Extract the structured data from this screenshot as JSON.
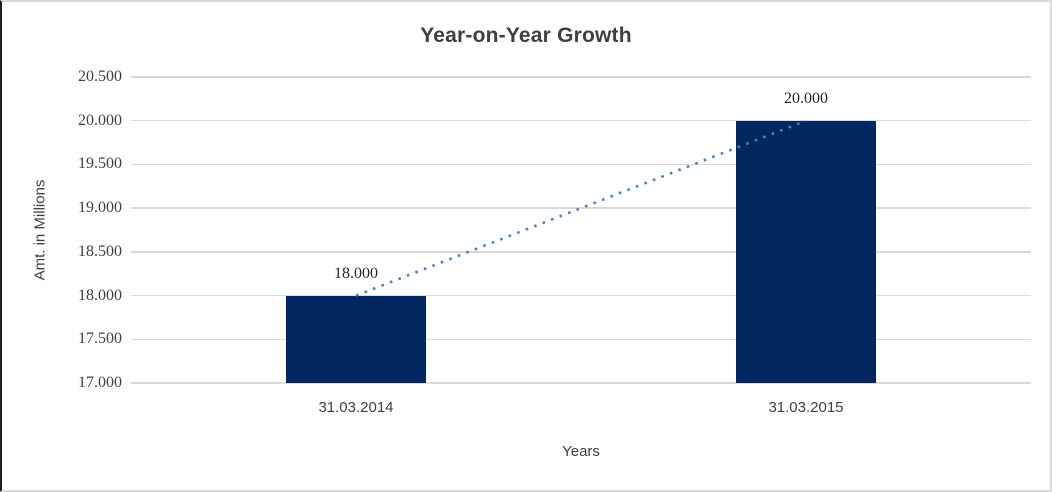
{
  "chart_data": {
    "type": "bar",
    "title": "Year-on-Year Growth",
    "categories": [
      "31.03.2014",
      "31.03.2015"
    ],
    "values": [
      18.0,
      20.0
    ],
    "value_labels": [
      "18.000",
      "20.000"
    ],
    "xlabel": "Years",
    "ylabel": "Amt. in Millions",
    "ylim": [
      17.0,
      20.5
    ],
    "ytick_step": 0.5,
    "ytick_labels": [
      "17.000",
      "17.500",
      "18.000",
      "18.500",
      "19.000",
      "19.500",
      "20.000",
      "20.500"
    ],
    "grid": true,
    "legend_position": "none",
    "trendline": {
      "style": "dotted",
      "connects": "bar tops 18.000 to 20.000"
    },
    "colors": {
      "bar": "#02265f",
      "gridline": "#d9d9d9",
      "trendline": "#4a7ec0",
      "text": "#404040",
      "frame_border": "#d9d9d9",
      "frame_left_edge": "#1f1f1f"
    }
  }
}
